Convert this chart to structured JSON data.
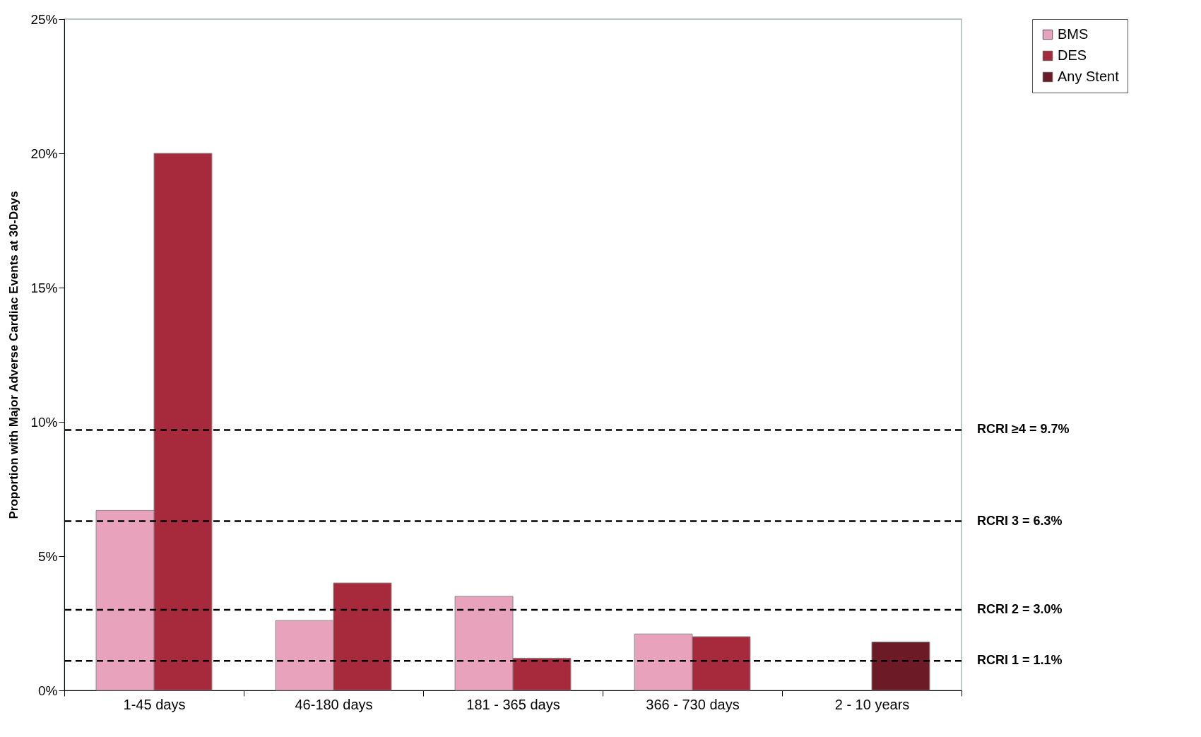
{
  "chart_data": {
    "type": "bar",
    "ylabel": "Proportion with Major Adverse Cardiac Events at 30-Days",
    "categories": [
      "1-45 days",
      "46-180 days",
      "181 - 365 days",
      "366 - 730 days",
      "2 - 10 years"
    ],
    "series": [
      {
        "name": "BMS",
        "color": "#e8a2bc",
        "values": [
          6.7,
          2.6,
          3.5,
          2.1,
          null
        ]
      },
      {
        "name": "DES",
        "color": "#a62a3c",
        "values": [
          20.0,
          4.0,
          1.2,
          2.0,
          null
        ]
      },
      {
        "name": "Any Stent",
        "color": "#6b1a26",
        "values": [
          null,
          null,
          null,
          null,
          1.8
        ]
      }
    ],
    "ylim": [
      0,
      25
    ],
    "yticks": [
      {
        "value": 0,
        "label": "0%"
      },
      {
        "value": 5,
        "label": "5%"
      },
      {
        "value": 10,
        "label": "10%"
      },
      {
        "value": 15,
        "label": "15%"
      },
      {
        "value": 20,
        "label": "20%"
      },
      {
        "value": 25,
        "label": "25%"
      }
    ],
    "ref_lines": [
      {
        "axis": "y",
        "value": 9.7,
        "label": "RCRI ≥4 = 9.7%",
        "color": "#000000",
        "line_style": "dashed"
      },
      {
        "axis": "y",
        "value": 6.3,
        "label": "RCRI 3 = 6.3%",
        "color": "#000000",
        "line_style": "dashed"
      },
      {
        "axis": "y",
        "value": 3.0,
        "label": "RCRI 2 = 3.0%",
        "color": "#000000",
        "line_style": "dashed"
      },
      {
        "axis": "y",
        "value": 1.1,
        "label": "RCRI 1 = 1.1%",
        "color": "#000000",
        "line_style": "dashed"
      }
    ],
    "grid": false,
    "legend": "top right"
  }
}
